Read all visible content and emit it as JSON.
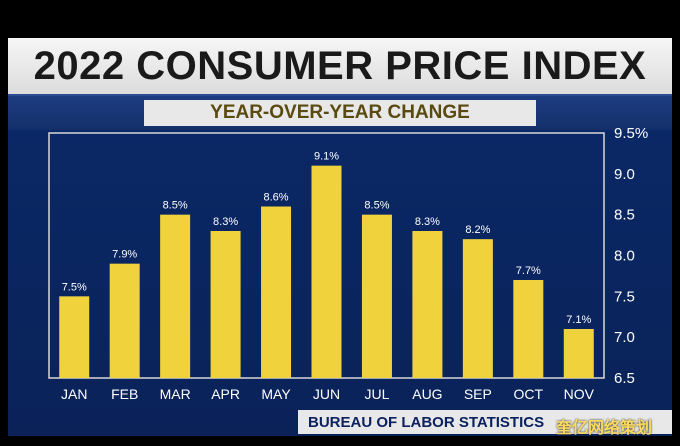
{
  "title": "2022 CONSUMER PRICE INDEX",
  "subtitle": "YEAR-OVER-YEAR CHANGE",
  "source": "BUREAU OF LABOR STATISTICS",
  "watermark": "奎亿网络策划",
  "colors": {
    "bar": "#f0d23c",
    "background": "#0b2a6a",
    "title_band": "#e6e6e6"
  },
  "chart_data": {
    "type": "bar",
    "categories": [
      "JAN",
      "FEB",
      "MAR",
      "APR",
      "MAY",
      "JUN",
      "JUL",
      "AUG",
      "SEP",
      "OCT",
      "NOV"
    ],
    "values": [
      7.5,
      7.9,
      8.5,
      8.3,
      8.6,
      9.1,
      8.5,
      8.3,
      8.2,
      7.7,
      7.1
    ],
    "data_labels": [
      "7.5%",
      "7.9%",
      "8.5%",
      "8.3%",
      "8.6%",
      "9.1%",
      "8.5%",
      "8.3%",
      "8.2%",
      "7.7%",
      "7.1%"
    ],
    "title": "2022 CONSUMER PRICE INDEX",
    "subtitle": "YEAR-OVER-YEAR CHANGE",
    "xlabel": "",
    "ylabel": "",
    "ylim": [
      6.5,
      9.5
    ],
    "yticks": [
      "6.5",
      "7.0",
      "7.5",
      "8.0",
      "8.5",
      "9.0",
      "9.5%"
    ],
    "ytick_values": [
      6.5,
      7.0,
      7.5,
      8.0,
      8.5,
      9.0,
      9.5
    ],
    "y_axis_side": "right",
    "grid": false,
    "legend": "none"
  }
}
